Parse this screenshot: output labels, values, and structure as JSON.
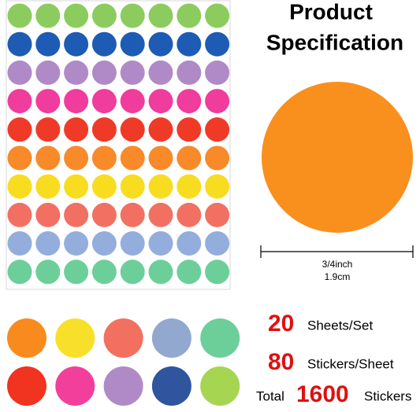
{
  "header": {
    "title_lines": [
      "Product",
      "Specification"
    ]
  },
  "dimension": {
    "imperial": "3/4inch",
    "metric": "1.9cm"
  },
  "specs": [
    {
      "number": 20,
      "unit": "Sheets/Set"
    },
    {
      "number": 80,
      "unit": "Stickers/Sheet"
    },
    {
      "prefix": "Total",
      "number": 1600,
      "unit": "Stickers"
    }
  ]
}
